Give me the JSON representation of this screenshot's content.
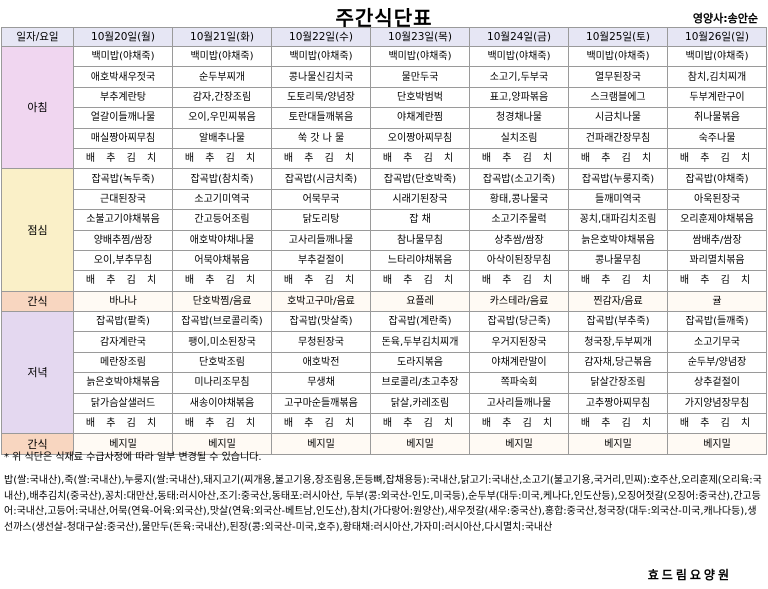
{
  "title": "주간식단표",
  "nutritionist": "영양사:송안순",
  "header": [
    "일자/요일",
    "10월20일(월)",
    "10월21일(화)",
    "10월22일(수)",
    "10월23일(목)",
    "10월24일(금)",
    "10월25일(토)",
    "10월26일(일)"
  ],
  "sections": [
    {
      "label": "아침",
      "cls": "bf",
      "rows": [
        [
          "백미밥(야채죽)",
          "백미밥(야채죽)",
          "백미밥(야채죽)",
          "백미밥(야채죽)",
          "백미밥(야채죽)",
          "백미밥(야채죽)",
          "백미밥(야채죽)"
        ],
        [
          "애호박새우젓국",
          "순두부찌개",
          "콩나물신김치국",
          "물만두국",
          "소고기,두부국",
          "열무된장국",
          "참치,김치찌개"
        ],
        [
          "부추계란탕",
          "감자,간장조림",
          "도토리묵/양념장",
          "단호박범벅",
          "표고,양파볶음",
          "스크램블에그",
          "두부계란구이"
        ],
        [
          "얼갈이들깨나물",
          "오이,우민찌볶음",
          "토란대들깨볶음",
          "야채계란찜",
          "청경채나물",
          "시금치나물",
          "취나물볶음"
        ],
        [
          "매실짱아찌무침",
          "알배추나물",
          "쑥 갓 나 물",
          "오이짱아찌무침",
          "실치조림",
          "건파래간장무침",
          "숙주나물"
        ],
        [
          "배 추 김 치",
          "배 추 김 치",
          "배 추 김 치",
          "배 추 김 치",
          "배 추 김 치",
          "배 추 김 치",
          "배 추 김 치"
        ]
      ]
    },
    {
      "label": "점심",
      "cls": "lu",
      "rows": [
        [
          "잡곡밥(녹두죽)",
          "잡곡밥(참치죽)",
          "잡곡밥(시금치죽)",
          "잡곡밥(단호박죽)",
          "잡곡밥(소고기죽)",
          "잡곡밥(누룽지죽)",
          "잡곡밥(야채죽)"
        ],
        [
          "근대된장국",
          "소고기미역국",
          "어묵무국",
          "시래기된장국",
          "황태,콩나물국",
          "들깨미역국",
          "아욱된장국"
        ],
        [
          "소불고기야채볶음",
          "간고등어조림",
          "닭도리탕",
          "잡 채",
          "소고기주물럭",
          "꽁치,대파김치조림",
          "오리훈제야채볶음"
        ],
        [
          "양배추찜/쌈장",
          "애호박야채나물",
          "고사리들깨나물",
          "참나물무침",
          "상추쌈/쌈장",
          "늙은호박야채볶음",
          "쌈배추/쌈장"
        ],
        [
          "오이,부추무침",
          "어묵야채볶음",
          "부추겉절이",
          "느타리야채볶음",
          "아삭이된장무침",
          "콩나물무침",
          "꽈리멸치볶음"
        ],
        [
          "배 추 김 치",
          "배 추 김 치",
          "배 추 김 치",
          "배 추 김 치",
          "배 추 김 치",
          "배 추 김 치",
          "배 추 김 치"
        ]
      ]
    },
    {
      "label": "간식",
      "cls": "sn",
      "rows": [
        [
          "바나나",
          "단호박찜/음료",
          "호박고구마/음료",
          "요플레",
          "카스테라/음료",
          "찐감자/음료",
          "귤"
        ]
      ]
    },
    {
      "label": "저녁",
      "cls": "dn",
      "rows": [
        [
          "잡곡밥(팥죽)",
          "잡곡밥(브로콜리죽)",
          "잡곡밥(맛살죽)",
          "잡곡밥(계란죽)",
          "잡곡밥(당근죽)",
          "잡곡밥(부추죽)",
          "잡곡밥(들깨죽)"
        ],
        [
          "감자계란국",
          "팽이,미소된장국",
          "무청된장국",
          "돈육,두부김치찌개",
          "우거지된장국",
          "청국장,두부찌개",
          "소고기무국"
        ],
        [
          "메란장조림",
          "단호박조림",
          "애호박전",
          "도라지볶음",
          "야채계란말이",
          "감자채,당근볶음",
          "순두부/양념장"
        ],
        [
          "늙은호박야채볶음",
          "미나리조무침",
          "무생채",
          "브로콜리/초고추장",
          "쪽파숙회",
          "닭살간장조림",
          "상추겉절이"
        ],
        [
          "닭가슴살샐러드",
          "새송이야채볶음",
          "고구마순들깨볶음",
          "닭살,카레조림",
          "고사리들깨나물",
          "고추짱아찌무침",
          "가지양념장무침"
        ],
        [
          "배 추 김 치",
          "배 추 김 치",
          "배 추 김 치",
          "배 추 김 치",
          "배 추 김 치",
          "배 추 김 치",
          "배 추 김 치"
        ]
      ]
    },
    {
      "label": "간식",
      "cls": "sn",
      "rows": [
        [
          "베지밀",
          "베지밀",
          "베지밀",
          "베지밀",
          "베지밀",
          "베지밀",
          "베지밀"
        ]
      ]
    }
  ],
  "note": "* 위 식단은 식재료 수급사정에 따라 일부 변경될 수 있습니다.",
  "origin": "밥(쌀:국내산),죽(쌀:국내산),누룽지(쌀:국내산),돼지고기(찌개용,불고기용,장조림용,돈등뼈,잡채용등):국내산,닭고기:국내산,소고기(불고기용,국거리,민찌):호주산,오리훈제(오리육:국내산),배추김치(중국산),꽁치:대만산,동태:러시아산,조기:중국산,동태포:러시아산, 두부(콩:외국산-인도,미국등),순두부(대두:미국,케나다,인도산등),오징어젓갈(오징어:중국산),간고등어:국내산,고등어:국내산,어묵(연육-어육:외국산),맛살(연육:외국산-베트남,인도산),참치(가다랑어:원양산),새우젓갈(새우:중국산),홍합:중국산,청국장(대두:외국산-미국,캐나다등),생선까스(생선살-청대구살:중국산),물만두(돈육:국내산),된장(콩:외국산-미국,호주),황태채:러시아산,가자미:러시아산,다시멸치:국내산",
  "footer": "효드림요양원"
}
